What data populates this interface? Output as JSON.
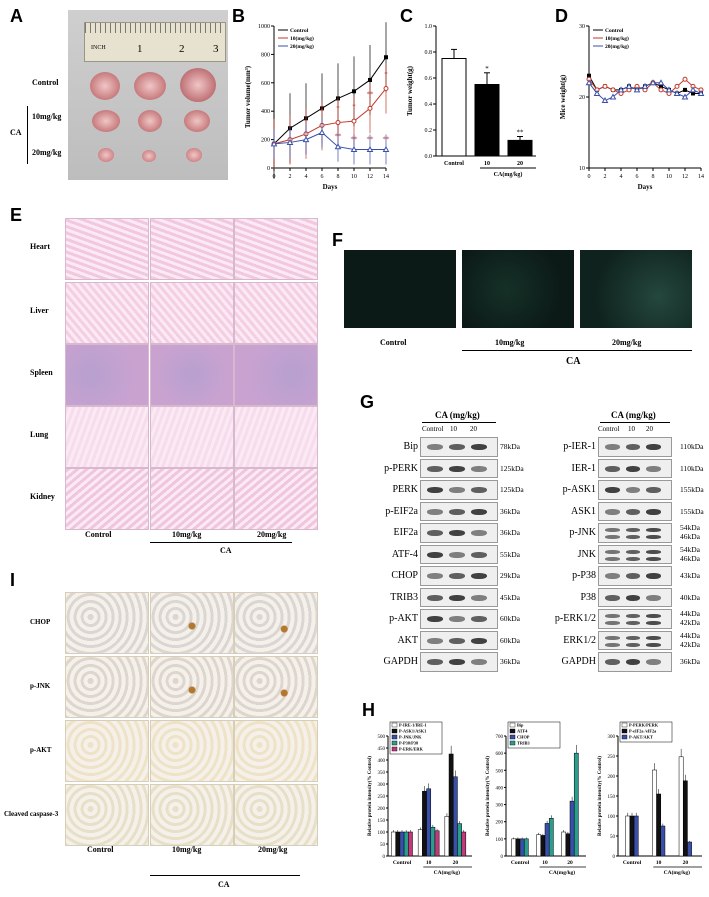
{
  "panels": {
    "A": "A",
    "B": "B",
    "C": "C",
    "D": "D",
    "E": "E",
    "F": "F",
    "G": "G",
    "H": "H",
    "I": "I"
  },
  "panelA": {
    "rows": [
      "Control",
      "10mg/kg",
      "20mg/kg"
    ],
    "group": "CA",
    "ruler_text": "INCH",
    "ruler_numbers": [
      "1",
      "2",
      "3"
    ]
  },
  "chartB": {
    "type": "line",
    "ylabel": "Tumor volume(mm³)",
    "xlabel": "Days",
    "x": [
      0,
      2,
      4,
      6,
      8,
      10,
      12,
      14
    ],
    "ylim": [
      0,
      1000
    ],
    "yticks": [
      0,
      200,
      400,
      600,
      800,
      1000
    ],
    "series": [
      {
        "name": "Control",
        "values": [
          170,
          280,
          350,
          420,
          490,
          540,
          620,
          780
        ],
        "color": "#000000"
      },
      {
        "name": "10(mg/kg)",
        "values": [
          170,
          200,
          240,
          300,
          320,
          330,
          420,
          560
        ],
        "color": "#c0392b"
      },
      {
        "name": "20(mg/kg)",
        "values": [
          170,
          180,
          200,
          250,
          150,
          130,
          130,
          130
        ],
        "color": "#3a4fa8"
      }
    ],
    "stars_10": [
      "*",
      "*",
      "*",
      "**",
      "*"
    ],
    "stars_20": [
      "**",
      "**",
      "**",
      "**"
    ]
  },
  "chartC": {
    "type": "bar",
    "ylabel": "Tumor weight(g)",
    "xlabel": "CA(mg/kg)",
    "categories": [
      "Control",
      "10",
      "20"
    ],
    "values": [
      0.75,
      0.55,
      0.12
    ],
    "errors": [
      0.07,
      0.09,
      0.03
    ],
    "ylim": [
      0,
      1.0
    ],
    "yticks": [
      "0.0",
      "0.2",
      "0.4",
      "0.6",
      "0.8",
      "1.0"
    ],
    "stars": [
      "",
      "*",
      "**"
    ]
  },
  "chartD": {
    "type": "line",
    "ylabel": "Mice weight(g)",
    "xlabel": "Days",
    "x": [
      0,
      1,
      2,
      3,
      4,
      5,
      6,
      7,
      8,
      9,
      10,
      11,
      12,
      13,
      14
    ],
    "ylim": [
      10,
      30
    ],
    "yticks": [
      "10",
      "20",
      "30"
    ],
    "series": [
      {
        "name": "Control",
        "values": [
          23,
          21,
          21.5,
          21,
          21,
          21.5,
          21,
          21.5,
          22,
          21.5,
          21,
          20.5,
          21,
          20.5,
          20.5
        ],
        "color": "#000000"
      },
      {
        "name": "10(mg/kg)",
        "values": [
          22.5,
          21,
          21.5,
          21,
          20.5,
          21,
          21.5,
          21,
          22,
          21,
          20.5,
          21.5,
          22.5,
          21.5,
          21
        ],
        "color": "#c0392b"
      },
      {
        "name": "20(mg/kg)",
        "values": [
          22,
          20.5,
          19.5,
          20,
          21,
          21.5,
          21,
          21.5,
          22,
          22,
          21,
          20.5,
          20,
          21,
          20.5
        ],
        "color": "#3a4fa8"
      }
    ]
  },
  "panelE": {
    "rows": [
      "Heart",
      "Liver",
      "Spleen",
      "Lung",
      "Kidney"
    ],
    "cols": [
      "Control",
      "10mg/kg",
      "20mg/kg"
    ],
    "group": "CA"
  },
  "panelF": {
    "cols": [
      "Control",
      "10mg/kg",
      "20mg/kg"
    ],
    "group": "CA"
  },
  "panelG": {
    "left": {
      "header": "CA (mg/kg)",
      "cols": [
        "Control",
        "10",
        "20"
      ],
      "rows": [
        {
          "name": "Bip",
          "kda": "78kDa"
        },
        {
          "name": "p-PERK",
          "kda": "125kDa"
        },
        {
          "name": "PERK",
          "kda": "125kDa"
        },
        {
          "name": "p-EIF2a",
          "kda": "36kDa"
        },
        {
          "name": "EIF2a",
          "kda": "36kDa"
        },
        {
          "name": "ATF-4",
          "kda": "55kDa"
        },
        {
          "name": "CHOP",
          "kda": "29kDa"
        },
        {
          "name": "TRIB3",
          "kda": "45kDa"
        },
        {
          "name": "p-AKT",
          "kda": "60kDa"
        },
        {
          "name": "AKT",
          "kda": "60kDa"
        },
        {
          "name": "GAPDH",
          "kda": "36kDa"
        }
      ]
    },
    "right": {
      "header": "CA (mg/kg)",
      "cols": [
        "Control",
        "10",
        "20"
      ],
      "rows": [
        {
          "name": "p-IER-1",
          "kda": "110kDa"
        },
        {
          "name": "IER-1",
          "kda": "110kDa"
        },
        {
          "name": "p-ASK1",
          "kda": "155kDa"
        },
        {
          "name": "ASK1",
          "kda": "155kDa"
        },
        {
          "name": "p-JNK",
          "kda": "54kDa\n46kDa"
        },
        {
          "name": "JNK",
          "kda": "54kDa\n46kDa"
        },
        {
          "name": "p-P38",
          "kda": "43kDa"
        },
        {
          "name": "P38",
          "kda": "40kDa"
        },
        {
          "name": "p-ERK1/2",
          "kda": "44kDa\n42kDa"
        },
        {
          "name": "ERK1/2",
          "kda": "44kDa\n42kDa"
        },
        {
          "name": "GAPDH",
          "kda": "36kDa"
        }
      ]
    }
  },
  "chartH": [
    {
      "type": "bar",
      "ylabel": "Relative protein intensity(% Control)",
      "xlabel": "CA(mg/kg)",
      "categories": [
        "Control",
        "10",
        "20"
      ],
      "ylim": [
        0,
        500
      ],
      "yticks": [
        "0",
        "50",
        "100",
        "150",
        "200",
        "250",
        "300",
        "350",
        "400",
        "450",
        "500"
      ],
      "series": [
        {
          "name": "P-IRE-1/IRE-1",
          "values": [
            100,
            110,
            165
          ],
          "color": "#ffffff"
        },
        {
          "name": "P-ASK1/ASK1",
          "values": [
            100,
            270,
            425
          ],
          "color": "#111111"
        },
        {
          "name": "P-JNK/JNK",
          "values": [
            100,
            280,
            330
          ],
          "color": "#3a4fa8"
        },
        {
          "name": "P-P38/P38",
          "values": [
            100,
            120,
            135
          ],
          "color": "#2a9d8f"
        },
        {
          "name": "P-ERK/ERK",
          "values": [
            100,
            105,
            100
          ],
          "color": "#c0397a"
        }
      ]
    },
    {
      "type": "bar",
      "ylabel": "Relative protein intensity(% Control)",
      "xlabel": "CA(mg/kg)",
      "categories": [
        "Control",
        "10",
        "20"
      ],
      "ylim": [
        0,
        700
      ],
      "yticks": [
        "0",
        "100",
        "200",
        "300",
        "400",
        "500",
        "600",
        "700"
      ],
      "series": [
        {
          "name": "Bip",
          "values": [
            100,
            125,
            140
          ],
          "color": "#ffffff"
        },
        {
          "name": "ATF4",
          "values": [
            100,
            120,
            130
          ],
          "color": "#111111"
        },
        {
          "name": "CHOP",
          "values": [
            100,
            190,
            320
          ],
          "color": "#3a4fa8"
        },
        {
          "name": "TRIB3",
          "values": [
            100,
            220,
            600
          ],
          "color": "#2a9d8f"
        }
      ]
    },
    {
      "type": "bar",
      "ylabel": "Relative protein intensity(% Control)",
      "xlabel": "CA(mg/kg)",
      "categories": [
        "Control",
        "10",
        "20"
      ],
      "ylim": [
        0,
        300
      ],
      "yticks": [
        "0",
        "50",
        "100",
        "150",
        "200",
        "250",
        "300"
      ],
      "series": [
        {
          "name": "P-PERK/PERK",
          "values": [
            100,
            215,
            248
          ],
          "color": "#ffffff"
        },
        {
          "name": "P-eIF2a /eIF2a",
          "values": [
            100,
            155,
            188
          ],
          "color": "#111111"
        },
        {
          "name": "P-AKT/AKT",
          "values": [
            100,
            75,
            35
          ],
          "color": "#3a4fa8"
        }
      ]
    }
  ],
  "panelI": {
    "rows": [
      "CHOP",
      "p-JNK",
      "p-AKT",
      "Cleaved caspase-3"
    ],
    "cols": [
      "Control",
      "10mg/kg",
      "20mg/kg"
    ],
    "group": "CA"
  }
}
